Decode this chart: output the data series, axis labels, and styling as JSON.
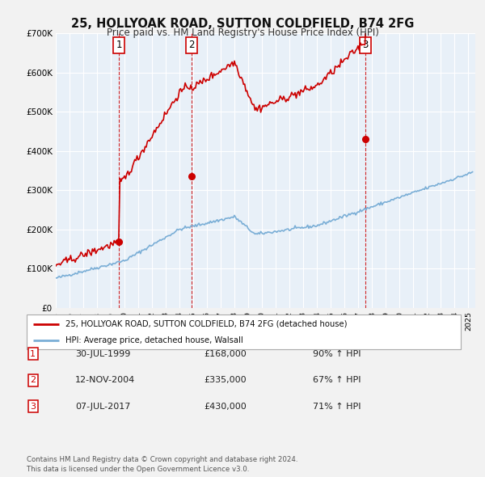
{
  "title": "25, HOLLYOAK ROAD, SUTTON COLDFIELD, B74 2FG",
  "subtitle": "Price paid vs. HM Land Registry's House Price Index (HPI)",
  "legend_line1": "25, HOLLYOAK ROAD, SUTTON COLDFIELD, B74 2FG (detached house)",
  "legend_line2": "HPI: Average price, detached house, Walsall",
  "house_color": "#cc0000",
  "hpi_color": "#7aaed6",
  "plot_bg_color": "#e8f0f8",
  "transactions": [
    {
      "date_year": 1999.58,
      "price": 168000,
      "label": "1"
    },
    {
      "date_year": 2004.87,
      "price": 335000,
      "label": "2"
    },
    {
      "date_year": 2017.52,
      "price": 430000,
      "label": "3"
    }
  ],
  "vline_years": [
    1999.58,
    2004.87,
    2017.52
  ],
  "table_rows": [
    [
      "1",
      "30-JUL-1999",
      "£168,000",
      "90% ↑ HPI"
    ],
    [
      "2",
      "12-NOV-2004",
      "£335,000",
      "67% ↑ HPI"
    ],
    [
      "3",
      "07-JUL-2017",
      "£430,000",
      "71% ↑ HPI"
    ]
  ],
  "footnote": "Contains HM Land Registry data © Crown copyright and database right 2024.\nThis data is licensed under the Open Government Licence v3.0.",
  "yticks": [
    0,
    100000,
    200000,
    300000,
    400000,
    500000,
    600000,
    700000
  ],
  "ytick_labels": [
    "£0",
    "£100K",
    "£200K",
    "£300K",
    "£400K",
    "£500K",
    "£600K",
    "£700K"
  ]
}
